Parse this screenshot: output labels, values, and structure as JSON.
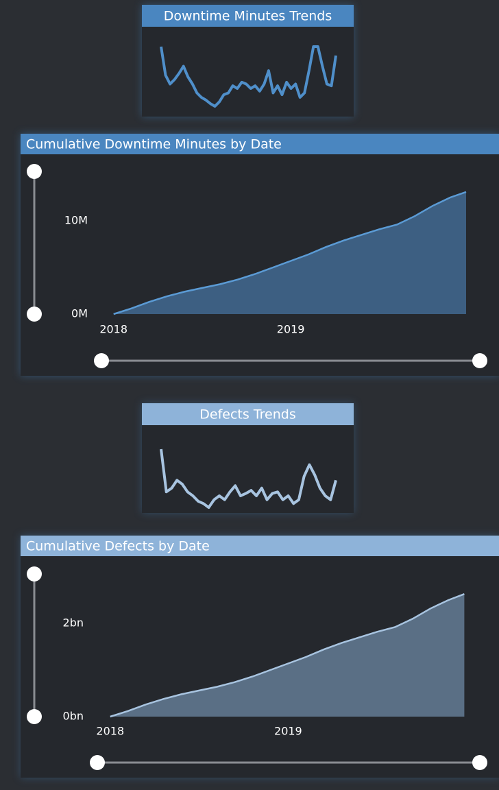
{
  "chart_data": [
    {
      "type": "line",
      "title": "Downtime Minutes Trends",
      "color": "#4f8fca",
      "header_color": "#4a86c0",
      "values": [
        82,
        50,
        40,
        45,
        52,
        60,
        48,
        40,
        30,
        25,
        22,
        18,
        15,
        20,
        28,
        30,
        38,
        35,
        42,
        40,
        35,
        38,
        32,
        40,
        55,
        30,
        38,
        28,
        42,
        35,
        40,
        25,
        30,
        55,
        82,
        82,
        60,
        40,
        38,
        72
      ]
    },
    {
      "type": "area",
      "title": "Cumulative Downtime Minutes by Date",
      "color": "#5b9bd5",
      "fill_color": "#3d5f82",
      "header_color": "#4a86c0",
      "x": [
        2018.0,
        2018.1,
        2018.2,
        2018.3,
        2018.4,
        2018.5,
        2018.6,
        2018.7,
        2018.8,
        2018.9,
        2019.0,
        2019.1,
        2019.2,
        2019.3,
        2019.4,
        2019.5,
        2019.6,
        2019.7,
        2019.8,
        2019.9,
        2019.99
      ],
      "values": [
        0,
        600000,
        1300000,
        1900000,
        2400000,
        2800000,
        3200000,
        3700000,
        4300000,
        5000000,
        5700000,
        6400000,
        7200000,
        7900000,
        8500000,
        9100000,
        9600000,
        10500000,
        11600000,
        12500000,
        13100000
      ],
      "xlim": [
        2017.92,
        2019.99
      ],
      "ylim": [
        0,
        16400000
      ],
      "xticks": [
        2018,
        2019
      ],
      "yticks": [
        {
          "value": 0,
          "label": "0M"
        },
        {
          "value": 10000000,
          "label": "10M"
        }
      ]
    },
    {
      "type": "line",
      "title": "Defects Trends",
      "color": "#a8c4e0",
      "header_color": "#8eb3d9",
      "values": [
        95,
        40,
        45,
        55,
        50,
        40,
        35,
        28,
        25,
        20,
        30,
        35,
        30,
        40,
        48,
        35,
        38,
        42,
        35,
        45,
        30,
        38,
        40,
        30,
        35,
        25,
        30,
        60,
        75,
        62,
        45,
        35,
        30,
        55
      ]
    },
    {
      "type": "area",
      "title": "Cumulative Defects by Date",
      "color": "#a8c4e0",
      "fill_color": "#5a6f85",
      "header_color": "#8eb3d9",
      "x": [
        2018.0,
        2018.1,
        2018.2,
        2018.3,
        2018.4,
        2018.5,
        2018.6,
        2018.7,
        2018.8,
        2018.9,
        2019.0,
        2019.1,
        2019.2,
        2019.3,
        2019.4,
        2019.5,
        2019.6,
        2019.7,
        2019.8,
        2019.9,
        2019.99
      ],
      "values": [
        0,
        120000000,
        260000000,
        380000000,
        480000000,
        560000000,
        640000000,
        740000000,
        860000000,
        1000000000,
        1140000000,
        1280000000,
        1440000000,
        1580000000,
        1700000000,
        1820000000,
        1920000000,
        2100000000,
        2320000000,
        2500000000,
        2630000000
      ],
      "xlim": [
        2017.92,
        2020.0
      ],
      "ylim": [
        0,
        3310000000
      ],
      "xticks": [
        2018,
        2019
      ],
      "yticks": [
        {
          "value": 0,
          "label": "0bn"
        },
        {
          "value": 2000000000,
          "label": "2bn"
        }
      ]
    }
  ]
}
